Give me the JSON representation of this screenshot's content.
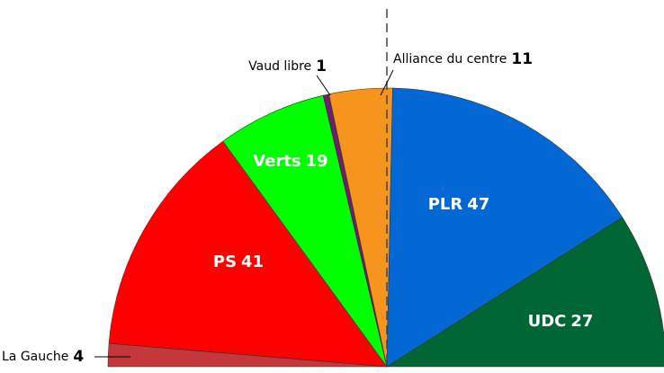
{
  "chart_data": {
    "type": "semicircle",
    "categories": [
      "La Gauche",
      "PS",
      "Verts",
      "Vaud libre",
      "Alliance du centre",
      "PLR",
      "UDC"
    ],
    "values": [
      4,
      41,
      19,
      1,
      11,
      47,
      27
    ],
    "colors": [
      "#c4373a",
      "#ff0000",
      "#00ff00",
      "#6b1f6e",
      "#f7941d",
      "#0468d4",
      "#006634"
    ]
  }
}
